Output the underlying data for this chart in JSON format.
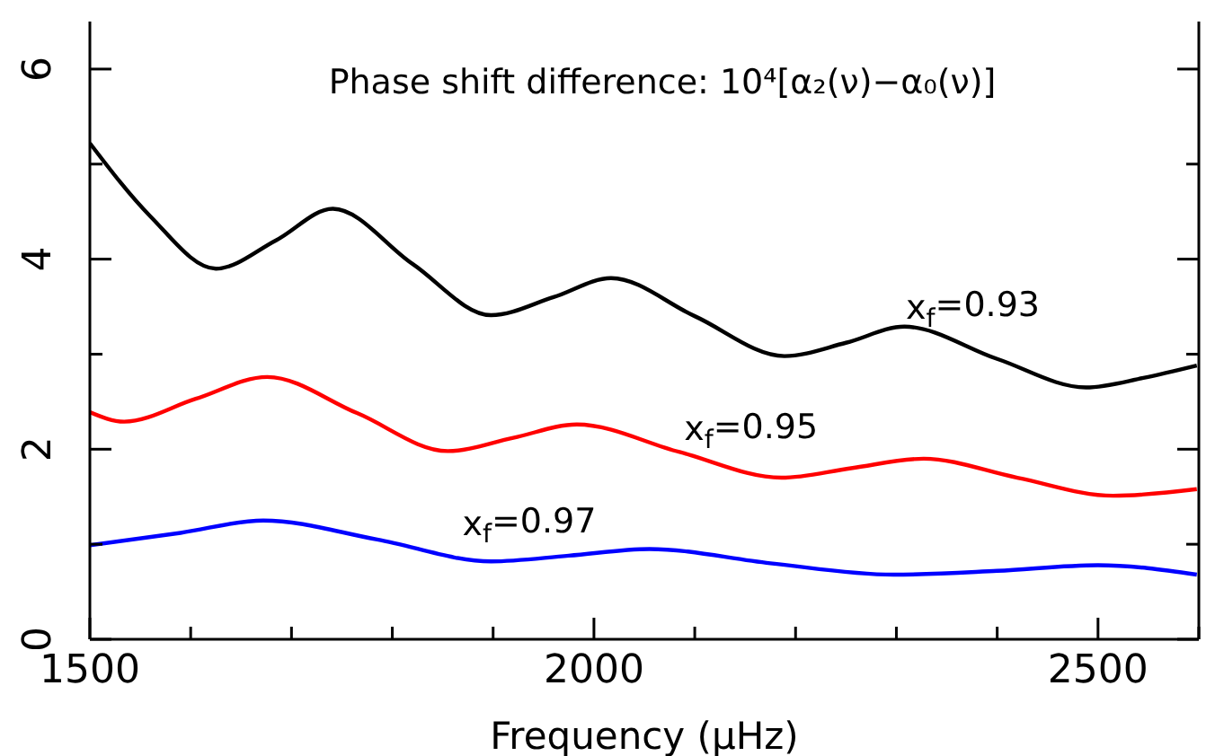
{
  "chart_data": {
    "type": "line",
    "title": "Phase shift difference: 10⁴[α₂(ν)−α₀(ν)]",
    "xlabel": "Frequency (μHz)",
    "xlim": [
      1500,
      2600
    ],
    "xticks": [
      1500,
      {
        "value": 1600,
        "label": null
      },
      {
        "value": 1700,
        "label": null
      },
      {
        "value": 1800,
        "label": null
      },
      {
        "value": 1900,
        "label": null
      },
      2000,
      {
        "value": 2100,
        "label": null
      },
      {
        "value": 2200,
        "label": null
      },
      {
        "value": 2300,
        "label": null
      },
      {
        "value": 2400,
        "label": null
      },
      2500,
      {
        "value": 2600,
        "label": null
      }
    ],
    "ylim": [
      0,
      6.5
    ],
    "yticks": [
      0,
      {
        "value": 1,
        "label": null
      },
      2,
      {
        "value": 3,
        "label": null
      },
      4,
      {
        "value": 5,
        "label": null
      },
      6
    ],
    "marker": "none",
    "line_style": "solid",
    "series": [
      {
        "name": "x$_{f}$=0.93",
        "color": "#000000",
        "x": [
          1500,
          1560,
          1625,
          1685,
          1741,
          1820,
          1898,
          1960,
          2017,
          2100,
          2189,
          2250,
          2308,
          2400,
          2488,
          2545,
          2598
        ],
        "values": [
          5.22,
          4.45,
          3.9,
          4.2,
          4.53,
          3.95,
          3.41,
          3.6,
          3.8,
          3.4,
          2.98,
          3.12,
          3.29,
          2.95,
          2.65,
          2.75,
          2.88
        ]
      },
      {
        "name": "x$_{f}$=0.95",
        "color": "#ff0000",
        "x": [
          1500,
          1534,
          1605,
          1676,
          1765,
          1855,
          1920,
          1983,
          2085,
          2186,
          2255,
          2327,
          2420,
          2515,
          2598
        ],
        "values": [
          2.39,
          2.29,
          2.53,
          2.76,
          2.38,
          1.98,
          2.12,
          2.26,
          1.97,
          1.7,
          1.8,
          1.9,
          1.7,
          1.51,
          1.58
        ]
      },
      {
        "name": "x$_{f}$=0.97",
        "color": "#0000ff",
        "x": [
          1500,
          1590,
          1672,
          1785,
          1898,
          1975,
          2055,
          2175,
          2297,
          2400,
          2500,
          2598
        ],
        "values": [
          0.99,
          1.12,
          1.25,
          1.05,
          0.82,
          0.88,
          0.95,
          0.8,
          0.68,
          0.72,
          0.78,
          0.68
        ]
      }
    ]
  }
}
